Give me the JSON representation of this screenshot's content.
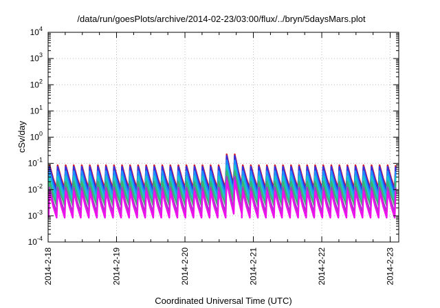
{
  "chart_data": {
    "type": "line",
    "title": "/data/run/goesPlots/archive/2014-02-23/03:00/flux/../bryn/5daysMars.plot",
    "xlabel": "Coordinated Universal Time (UTC)",
    "ylabel": "cSv/day",
    "yscale": "log",
    "ylim": [
      0.0001,
      10000
    ],
    "y_ticks": [
      {
        "value": 0.0001,
        "base": "10",
        "exp": "-4"
      },
      {
        "value": 0.001,
        "base": "10",
        "exp": "-3"
      },
      {
        "value": 0.01,
        "base": "10",
        "exp": "-2"
      },
      {
        "value": 0.1,
        "base": "10",
        "exp": "-1"
      },
      {
        "value": 1,
        "base": "10",
        "exp": "0"
      },
      {
        "value": 10,
        "base": "10",
        "exp": "1"
      },
      {
        "value": 100,
        "base": "10",
        "exp": "2"
      },
      {
        "value": 1000,
        "base": "10",
        "exp": "3"
      },
      {
        "value": 10000,
        "base": "10",
        "exp": "4"
      }
    ],
    "xlim": [
      "2014-02-18 00:00",
      "2014-02-23 03:00"
    ],
    "x_ticks": [
      "2014-2-18",
      "2014-2-19",
      "2014-2-20",
      "2014-2-21",
      "2014-2-22",
      "2014-2-23"
    ],
    "grid": true,
    "pattern": {
      "cycles_per_day": 8.5,
      "spike": {
        "start": "2014-02-20 12:00",
        "end": "2014-02-20 18:00",
        "factor": 2.6
      }
    },
    "series": [
      {
        "color": "#e8121b",
        "peak": 0.085,
        "trough": 0.011
      },
      {
        "color": "#3333dd",
        "peak": 0.075,
        "trough": 0.009
      },
      {
        "color": "#1e90ff",
        "peak": 0.05,
        "trough": 0.006
      },
      {
        "color": "#18c8c8",
        "peak": 0.032,
        "trough": 0.0038
      },
      {
        "color": "#3cb371",
        "peak": 0.02,
        "trough": 0.0025
      },
      {
        "color": "#a040c0",
        "peak": 0.012,
        "trough": 0.0013
      },
      {
        "color": "#ee11ee",
        "peak": 0.0085,
        "trough": 0.00085
      }
    ]
  }
}
